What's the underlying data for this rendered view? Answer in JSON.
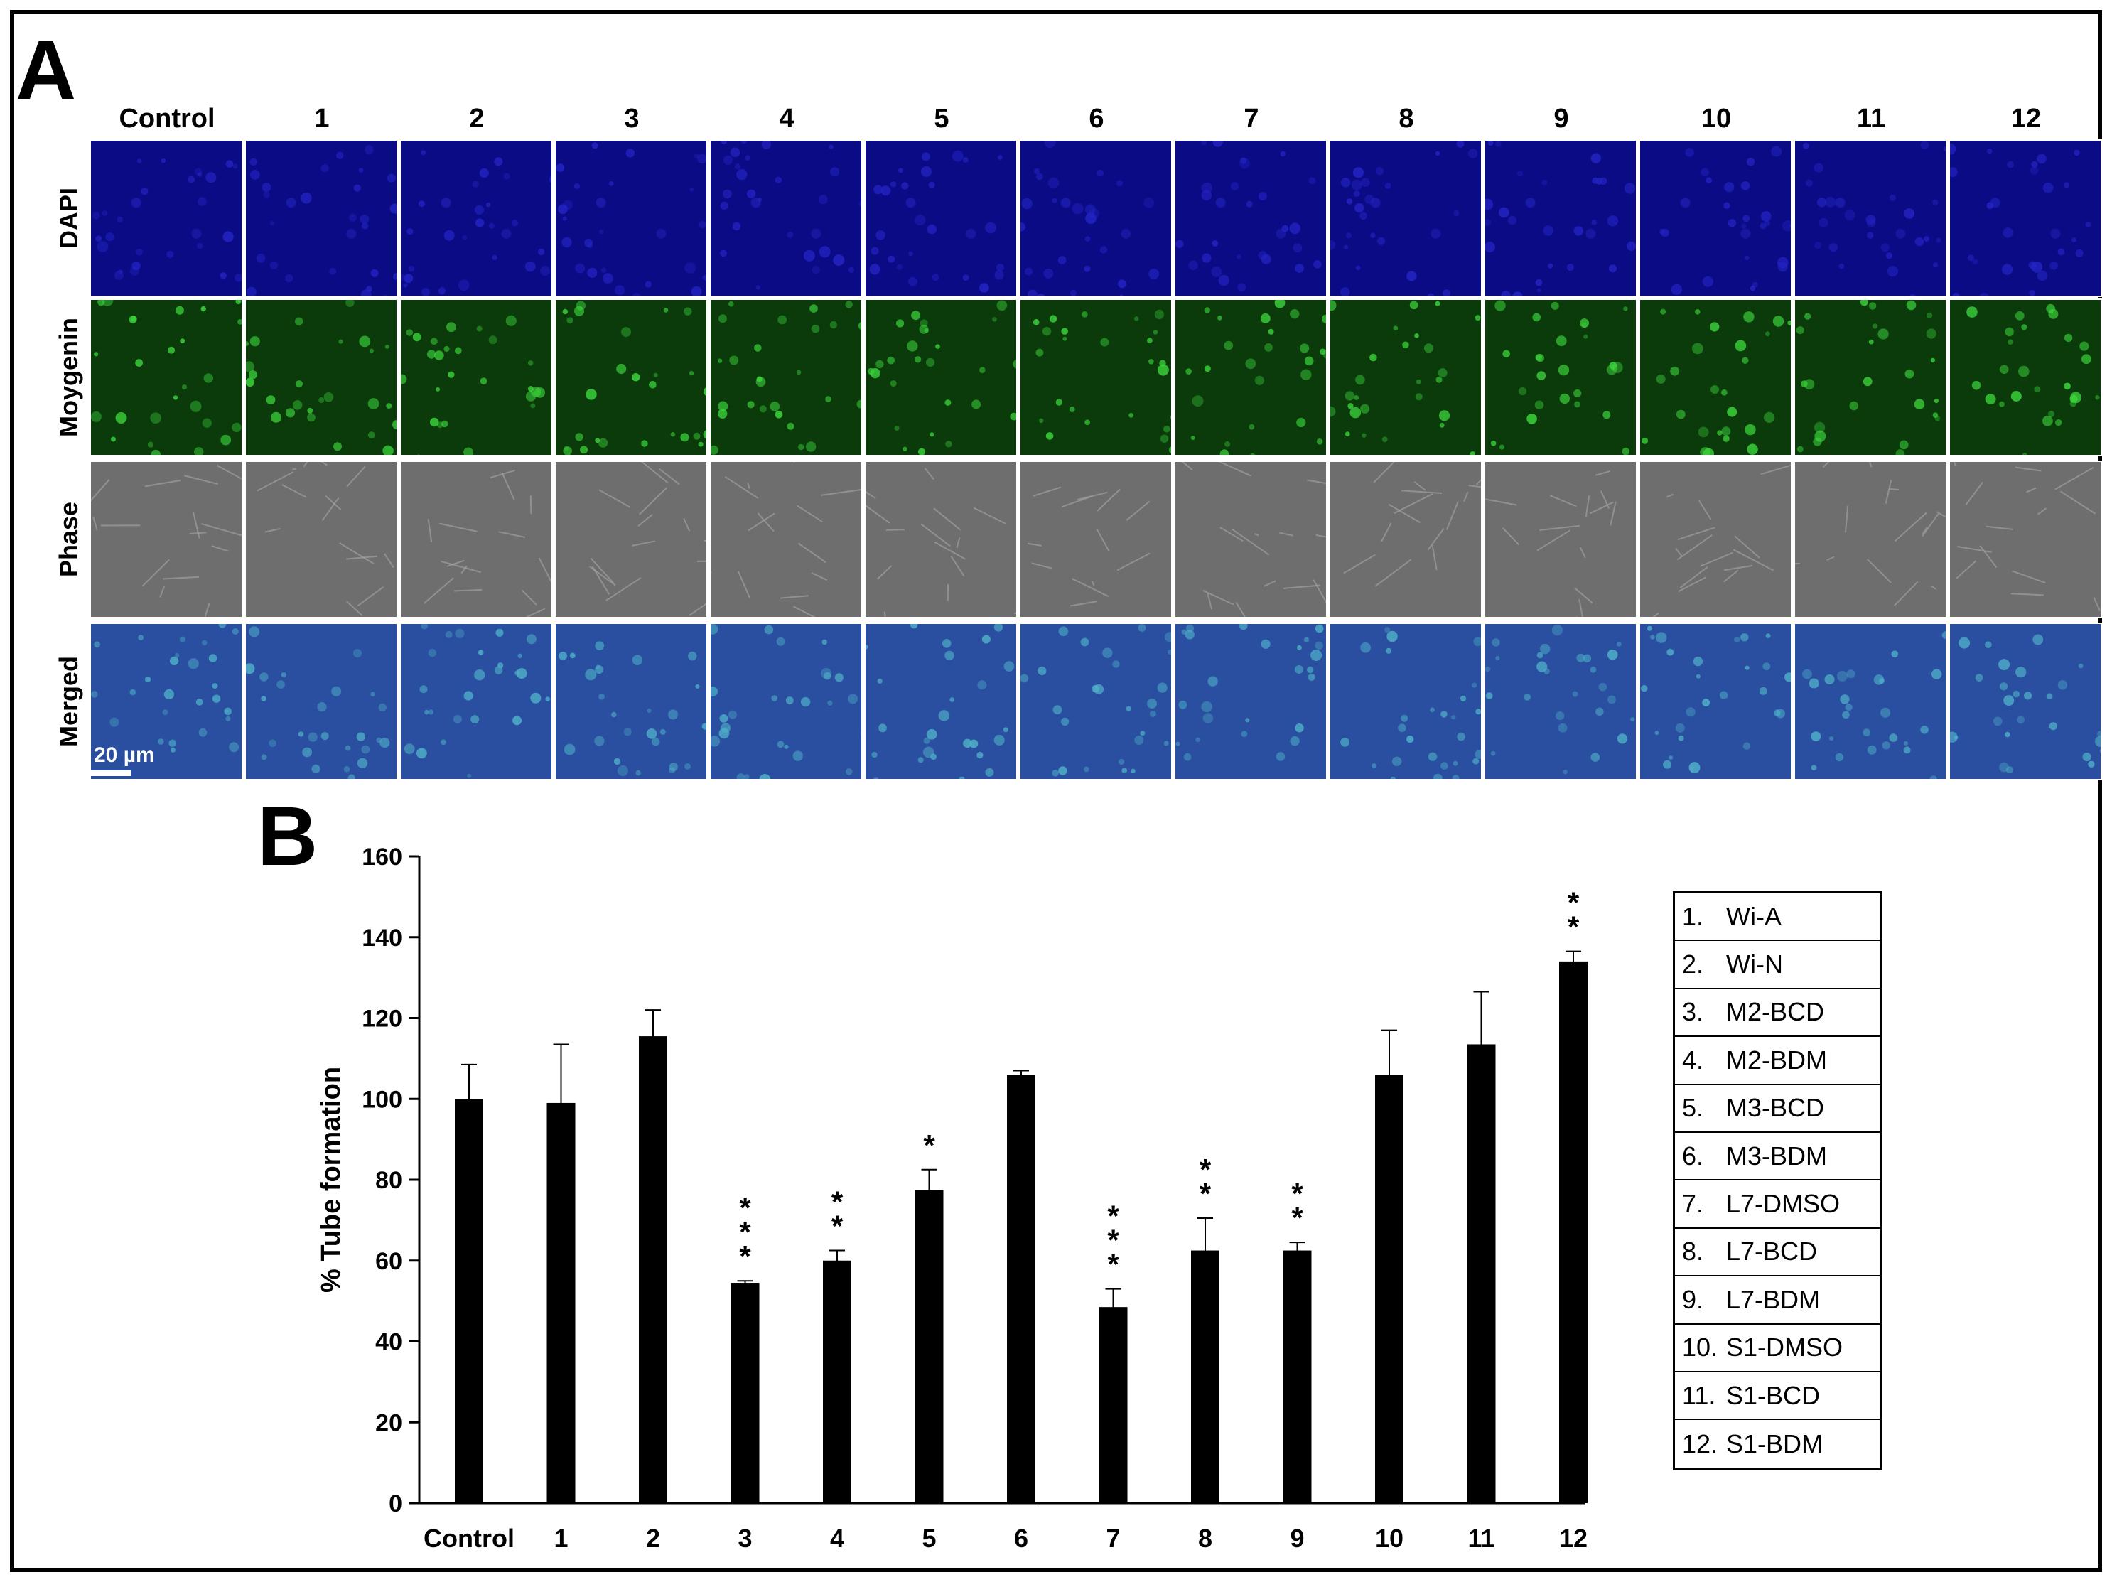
{
  "panel_a": {
    "label": "A",
    "columns": [
      "Control",
      "1",
      "2",
      "3",
      "4",
      "5",
      "6",
      "7",
      "8",
      "9",
      "10",
      "11",
      "12"
    ],
    "rows": [
      "DAPI",
      "Moygenin",
      "Phase",
      "Merged"
    ],
    "scale_bar": "20 µm"
  },
  "panel_b_label": "B",
  "chart_data": {
    "type": "bar",
    "categories": [
      "Control",
      "1",
      "2",
      "3",
      "4",
      "5",
      "6",
      "7",
      "8",
      "9",
      "10",
      "11",
      "12"
    ],
    "values": [
      100,
      99,
      115.5,
      54.5,
      60,
      77.5,
      106,
      48.5,
      62.5,
      62.5,
      106,
      113.5,
      134
    ],
    "errors": [
      8.5,
      14.5,
      6.5,
      0.5,
      2.5,
      5,
      1,
      4.5,
      8,
      2,
      11,
      13,
      2.5
    ],
    "significance": [
      "",
      "",
      "",
      "* * *",
      "* *",
      "*",
      "",
      "* * *",
      "* *",
      "* *",
      "",
      "",
      "* *"
    ],
    "xlabel": "",
    "ylabel": "% Tube formation",
    "ylim": [
      0,
      160
    ],
    "yticks": [
      "0",
      "20",
      "40",
      "60",
      "80",
      "100",
      "120",
      "140",
      "160"
    ],
    "grid": false,
    "color": "#000000"
  },
  "legend": [
    {
      "num": "1.",
      "text": "Wi-A"
    },
    {
      "num": "2.",
      "text": "Wi-N"
    },
    {
      "num": "3.",
      "text": "M2-BCD"
    },
    {
      "num": "4.",
      "text": "M2-BDM"
    },
    {
      "num": "5.",
      "text": "M3-BCD"
    },
    {
      "num": "6.",
      "text": "M3-BDM"
    },
    {
      "num": "7.",
      "text": "L7-DMSO"
    },
    {
      "num": "8.",
      "text": "L7-BCD"
    },
    {
      "num": "9.",
      "text": "L7-BDM"
    },
    {
      "num": "10.",
      "text": "S1-DMSO"
    },
    {
      "num": "11.",
      "text": "S1-BCD"
    },
    {
      "num": "12.",
      "text": "S1-BDM"
    }
  ]
}
